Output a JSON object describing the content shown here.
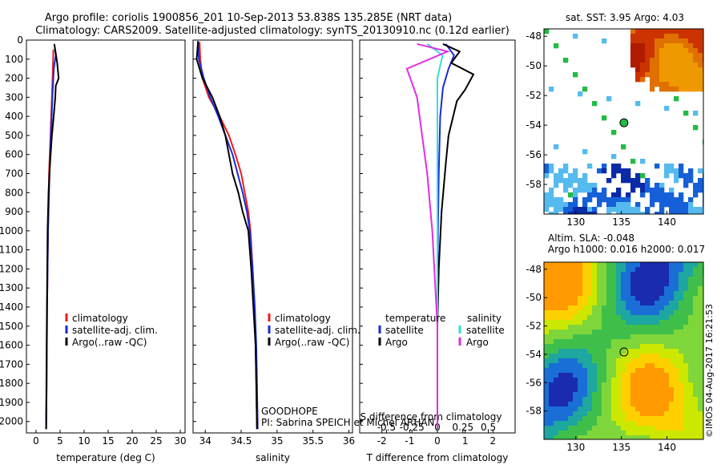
{
  "header": {
    "line1": "Argo profile: coriolis 1900856_201 10-Sep-2013 53.838S 135.285E (NRT data)",
    "line2": "Climatology: CARS2009. Satellite-adjusted climatology: synTS_20130910.nc (0.12d earlier)"
  },
  "annotations": {
    "goodhope": "GOODHOPE",
    "pi": "PI: Sabrina SPEICH et Michel ARHAN",
    "credit": "©IMOS 04-Aug-2017 16:21:53"
  },
  "colors": {
    "climatology": "#ee1c1c",
    "satellite": "#1a2bd6",
    "argo": "#000000",
    "salinity_sat": "#33dddd",
    "salinity_argo": "#e22ce2"
  },
  "chart_data": [
    {
      "type": "line",
      "id": "temperature",
      "xlabel": "temperature (deg C)",
      "ylabel": "",
      "xlim": [
        -2,
        31
      ],
      "ylim": [
        2060,
        0
      ],
      "xticks": [
        "0",
        "5",
        "10",
        "15",
        "20",
        "25",
        "30"
      ],
      "xtick_values": [
        0,
        5,
        10,
        15,
        20,
        25,
        30
      ],
      "yticks": [
        "0",
        "100",
        "200",
        "300",
        "400",
        "500",
        "600",
        "700",
        "800",
        "900",
        "1000",
        "1100",
        "1200",
        "1300",
        "1400",
        "1500",
        "1600",
        "1700",
        "1800",
        "1900",
        "2000"
      ],
      "ytick_values": [
        0,
        100,
        200,
        300,
        400,
        500,
        600,
        700,
        800,
        900,
        1000,
        1100,
        1200,
        1300,
        1400,
        1500,
        1600,
        1700,
        1800,
        1900,
        2000
      ],
      "legend": [
        "climatology",
        "satellite-adj. clim.",
        "Argo(..raw -QC)"
      ],
      "series": [
        {
          "name": "climatology",
          "color": "#ee1c1c",
          "points": [
            [
              3.6,
              50
            ],
            [
              3.5,
              150
            ],
            [
              3.3,
              300
            ],
            [
              3.0,
              500
            ],
            [
              2.7,
              700
            ],
            [
              2.5,
              1000
            ],
            [
              2.3,
              1400
            ],
            [
              2.2,
              1800
            ],
            [
              2.1,
              2040
            ]
          ]
        },
        {
          "name": "satellite-adj. clim.",
          "color": "#1a2bd6",
          "points": [
            [
              3.9,
              40
            ],
            [
              4.1,
              80
            ],
            [
              3.7,
              150
            ],
            [
              3.4,
              300
            ],
            [
              3.1,
              500
            ],
            [
              2.8,
              700
            ],
            [
              2.5,
              1000
            ],
            [
              2.3,
              1400
            ],
            [
              2.2,
              1800
            ],
            [
              2.1,
              2040
            ]
          ]
        },
        {
          "name": "Argo(..raw -QC)",
          "color": "#000000",
          "points": [
            [
              3.8,
              20
            ],
            [
              4.4,
              120
            ],
            [
              4.7,
              200
            ],
            [
              4.1,
              240
            ],
            [
              4.0,
              300
            ],
            [
              3.6,
              420
            ],
            [
              3.3,
              500
            ],
            [
              2.9,
              650
            ],
            [
              2.6,
              800
            ],
            [
              2.4,
              1000
            ],
            [
              2.3,
              1300
            ],
            [
              2.2,
              1600
            ],
            [
              2.1,
              2040
            ]
          ]
        }
      ]
    },
    {
      "type": "line",
      "id": "salinity",
      "xlabel": "salinity",
      "xlim": [
        33.83,
        36.05
      ],
      "ylim": [
        2060,
        0
      ],
      "xticks": [
        "34",
        "34.5",
        "35",
        "35.5",
        "36"
      ],
      "xtick_values": [
        34,
        34.5,
        35,
        35.5,
        36
      ],
      "legend": [
        "climatology",
        "satellite-adj. clim.",
        "Argo(..raw -QC)"
      ],
      "series": [
        {
          "name": "climatology",
          "color": "#ee1c1c",
          "points": [
            [
              33.92,
              10
            ],
            [
              33.93,
              100
            ],
            [
              33.96,
              200
            ],
            [
              34.05,
              300
            ],
            [
              34.2,
              400
            ],
            [
              34.33,
              500
            ],
            [
              34.42,
              600
            ],
            [
              34.5,
              700
            ],
            [
              34.55,
              800
            ],
            [
              34.6,
              900
            ],
            [
              34.63,
              1000
            ],
            [
              34.66,
              1200
            ],
            [
              34.68,
              1400
            ],
            [
              34.7,
              1600
            ],
            [
              34.71,
              1800
            ],
            [
              34.72,
              2040
            ]
          ]
        },
        {
          "name": "satellite-adj. clim.",
          "color": "#1a2bd6",
          "points": [
            [
              33.9,
              10
            ],
            [
              33.91,
              100
            ],
            [
              33.98,
              200
            ],
            [
              34.07,
              300
            ],
            [
              34.18,
              400
            ],
            [
              34.28,
              500
            ],
            [
              34.38,
              600
            ],
            [
              34.45,
              700
            ],
            [
              34.52,
              800
            ],
            [
              34.58,
              900
            ],
            [
              34.62,
              1000
            ],
            [
              34.66,
              1200
            ],
            [
              34.69,
              1400
            ],
            [
              34.71,
              1600
            ],
            [
              34.72,
              1800
            ],
            [
              34.73,
              2040
            ]
          ]
        },
        {
          "name": "Argo(..raw -QC)",
          "color": "#000000",
          "points": [
            [
              33.9,
              5
            ],
            [
              33.88,
              100
            ],
            [
              33.96,
              200
            ],
            [
              34.1,
              300
            ],
            [
              34.2,
              400
            ],
            [
              34.28,
              500
            ],
            [
              34.33,
              600
            ],
            [
              34.38,
              700
            ],
            [
              34.46,
              800
            ],
            [
              34.52,
              900
            ],
            [
              34.6,
              1000
            ],
            [
              34.64,
              1200
            ],
            [
              34.67,
              1400
            ],
            [
              34.7,
              1600
            ],
            [
              34.71,
              1800
            ],
            [
              34.72,
              2040
            ]
          ]
        }
      ]
    },
    {
      "type": "line",
      "id": "differences",
      "xlabel": "T difference from climatology",
      "xlabel_top": "S difference from climatology",
      "xlim": [
        -2.8,
        2.8
      ],
      "ylim": [
        2060,
        0
      ],
      "xticks": [
        "-2",
        "-1",
        "0",
        "1",
        "2"
      ],
      "xtick_values": [
        -2,
        -1,
        0,
        1,
        2
      ],
      "sticks": [
        "-0.5",
        "-0.25",
        "0",
        "0.25",
        "0.5"
      ],
      "stick_values": [
        -0.5,
        -0.25,
        0,
        0.25,
        0.5
      ],
      "legend_temperature": {
        "title": "temperature",
        "items": [
          "satellite",
          "Argo"
        ]
      },
      "legend_salinity": {
        "title": "salinity",
        "items": [
          "satellite",
          "Argo"
        ]
      },
      "series": [
        {
          "name": "temperature satellite",
          "color": "#1a2bd6",
          "points": [
            [
              0.3,
              20
            ],
            [
              0.6,
              80
            ],
            [
              0.4,
              150
            ],
            [
              0.2,
              250
            ],
            [
              0.1,
              400
            ],
            [
              0.05,
              700
            ],
            [
              0.02,
              1000
            ],
            [
              0,
              1400
            ],
            [
              0,
              2040
            ]
          ]
        },
        {
          "name": "temperature Argo",
          "color": "#000000",
          "points": [
            [
              0.2,
              20
            ],
            [
              0.8,
              60
            ],
            [
              0.5,
              120
            ],
            [
              1.3,
              180
            ],
            [
              1.0,
              260
            ],
            [
              0.7,
              320
            ],
            [
              0.4,
              500
            ],
            [
              0.3,
              650
            ],
            [
              0.15,
              900
            ],
            [
              0.05,
              1200
            ],
            [
              0,
              1500
            ],
            [
              0,
              2040
            ]
          ]
        },
        {
          "name": "salinity satellite",
          "color": "#33dddd",
          "points": [
            [
              -0.1,
              20
            ],
            [
              0.05,
              80
            ],
            [
              0.0,
              200
            ],
            [
              0.0,
              400
            ],
            [
              0.0,
              800
            ],
            [
              0.0,
              2040
            ]
          ]
        },
        {
          "name": "salinity Argo",
          "color": "#e22ce2",
          "points": [
            [
              -0.2,
              20
            ],
            [
              0.1,
              60
            ],
            [
              -0.3,
              150
            ],
            [
              -0.2,
              300
            ],
            [
              -0.15,
              500
            ],
            [
              -0.1,
              700
            ],
            [
              -0.05,
              1000
            ],
            [
              0,
              1500
            ],
            [
              0,
              2040
            ]
          ]
        }
      ]
    },
    {
      "type": "heatmap",
      "id": "sst-map",
      "title": "sat. SST: 3.95 Argo: 4.03",
      "xlim": [
        126.5,
        144
      ],
      "ylim": [
        -60,
        -47.5
      ],
      "xticks": [
        "130",
        "135",
        "140"
      ],
      "xtick_values": [
        130,
        135,
        140
      ],
      "yticks": [
        "-48",
        "-50",
        "-52",
        "-54",
        "-56",
        "-58"
      ],
      "ytick_values": [
        -48,
        -50,
        -52,
        -54,
        -56,
        -58
      ],
      "marker": [
        135.285,
        -53.838
      ]
    },
    {
      "type": "heatmap",
      "id": "sla-map",
      "title": "Altim. SLA: -0.048",
      "subtitle": "Argo h1000: 0.016 h2000: 0.017",
      "xlim": [
        126.5,
        144
      ],
      "ylim": [
        -60,
        -47.5
      ],
      "xticks": [
        "130",
        "135",
        "140"
      ],
      "xtick_values": [
        130,
        135,
        140
      ],
      "yticks": [
        "-48",
        "-50",
        "-52",
        "-54",
        "-56",
        "-58"
      ],
      "ytick_values": [
        -48,
        -50,
        -52,
        -54,
        -56,
        -58
      ],
      "marker": [
        135.285,
        -53.838
      ]
    }
  ]
}
